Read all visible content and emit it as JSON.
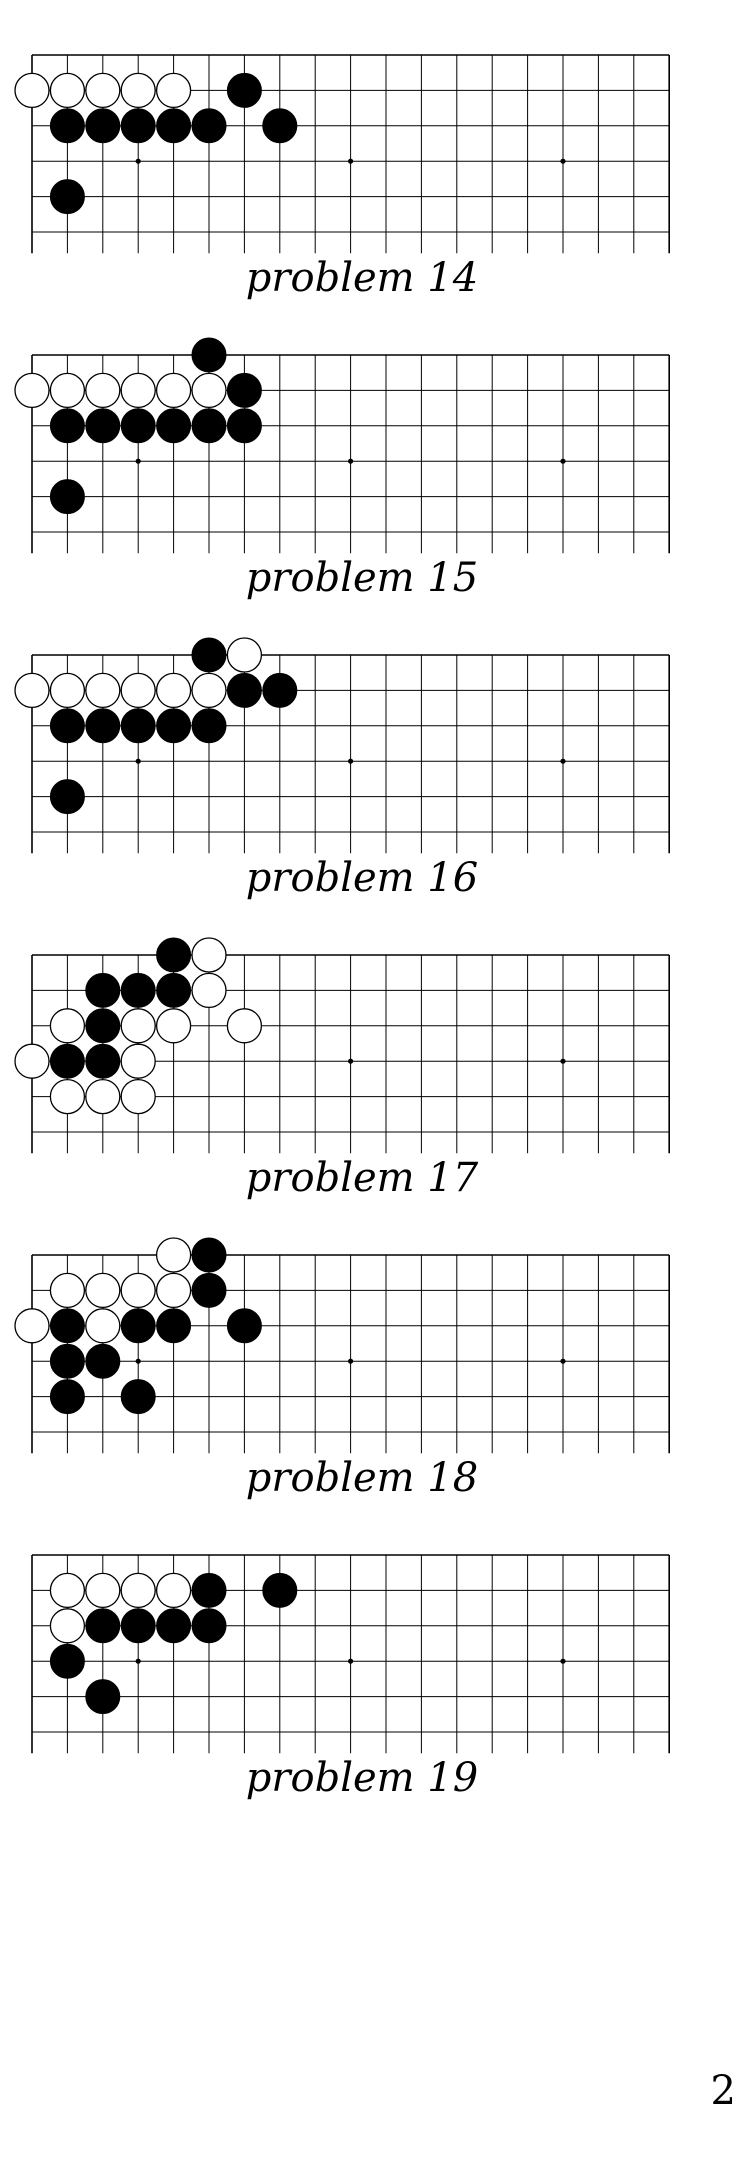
{
  "board": {
    "columns": 19,
    "rows_shown": 6,
    "hoshi": [
      [
        3,
        3
      ],
      [
        9,
        3
      ],
      [
        15,
        3
      ]
    ]
  },
  "problems": [
    {
      "label": "problem 14",
      "white": [
        [
          0,
          1
        ],
        [
          1,
          1
        ],
        [
          2,
          1
        ],
        [
          3,
          1
        ],
        [
          4,
          1
        ]
      ],
      "black": [
        [
          6,
          1
        ],
        [
          1,
          2
        ],
        [
          2,
          2
        ],
        [
          3,
          2
        ],
        [
          4,
          2
        ],
        [
          5,
          2
        ],
        [
          7,
          2
        ],
        [
          1,
          4
        ]
      ]
    },
    {
      "label": "problem 15",
      "white": [
        [
          0,
          1
        ],
        [
          1,
          1
        ],
        [
          2,
          1
        ],
        [
          3,
          1
        ],
        [
          4,
          1
        ],
        [
          5,
          1
        ]
      ],
      "black": [
        [
          5,
          0
        ],
        [
          6,
          1
        ],
        [
          1,
          2
        ],
        [
          2,
          2
        ],
        [
          3,
          2
        ],
        [
          4,
          2
        ],
        [
          5,
          2
        ],
        [
          6,
          2
        ],
        [
          1,
          4
        ]
      ]
    },
    {
      "label": "problem 16",
      "white": [
        [
          6,
          0
        ],
        [
          0,
          1
        ],
        [
          1,
          1
        ],
        [
          2,
          1
        ],
        [
          3,
          1
        ],
        [
          4,
          1
        ],
        [
          5,
          1
        ]
      ],
      "black": [
        [
          5,
          0
        ],
        [
          6,
          1
        ],
        [
          7,
          1
        ],
        [
          1,
          2
        ],
        [
          2,
          2
        ],
        [
          3,
          2
        ],
        [
          4,
          2
        ],
        [
          5,
          2
        ],
        [
          1,
          4
        ]
      ]
    },
    {
      "label": "problem 17",
      "white": [
        [
          5,
          0
        ],
        [
          5,
          1
        ],
        [
          1,
          2
        ],
        [
          3,
          2
        ],
        [
          4,
          2
        ],
        [
          6,
          2
        ],
        [
          0,
          3
        ],
        [
          3,
          3
        ],
        [
          1,
          4
        ],
        [
          2,
          4
        ],
        [
          3,
          4
        ]
      ],
      "black": [
        [
          4,
          0
        ],
        [
          2,
          1
        ],
        [
          3,
          1
        ],
        [
          4,
          1
        ],
        [
          2,
          2
        ],
        [
          1,
          3
        ],
        [
          2,
          3
        ]
      ]
    },
    {
      "label": "problem 18",
      "white": [
        [
          4,
          0
        ],
        [
          1,
          1
        ],
        [
          2,
          1
        ],
        [
          3,
          1
        ],
        [
          4,
          1
        ],
        [
          0,
          2
        ],
        [
          2,
          2
        ]
      ],
      "black": [
        [
          5,
          0
        ],
        [
          5,
          1
        ],
        [
          1,
          2
        ],
        [
          3,
          2
        ],
        [
          4,
          2
        ],
        [
          6,
          2
        ],
        [
          1,
          3
        ],
        [
          2,
          3
        ],
        [
          1,
          4
        ],
        [
          3,
          4
        ]
      ]
    },
    {
      "label": "problem 19",
      "white": [
        [
          1,
          1
        ],
        [
          2,
          1
        ],
        [
          3,
          1
        ],
        [
          4,
          1
        ],
        [
          1,
          2
        ]
      ],
      "black": [
        [
          5,
          1
        ],
        [
          7,
          1
        ],
        [
          2,
          2
        ],
        [
          3,
          2
        ],
        [
          4,
          2
        ],
        [
          5,
          2
        ],
        [
          1,
          3
        ],
        [
          2,
          4
        ]
      ]
    }
  ],
  "page_number": "2"
}
